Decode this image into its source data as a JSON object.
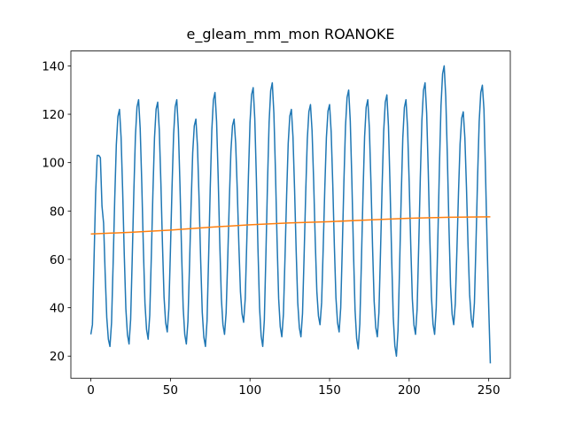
{
  "chart_data": {
    "type": "line",
    "title": "e_gleam_mm_mon ROANOKE",
    "series": [
      {
        "color": "#1f77b4",
        "x": [
          0,
          1,
          2,
          3,
          4,
          5,
          6,
          7,
          8,
          9,
          10,
          11,
          12,
          13,
          14,
          15,
          16,
          17,
          18,
          19,
          20,
          21,
          22,
          23,
          24,
          25,
          26,
          27,
          28,
          29,
          30,
          31,
          32,
          33,
          34,
          35,
          36,
          37,
          38,
          39,
          40,
          41,
          42,
          43,
          44,
          45,
          46,
          47,
          48,
          49,
          50,
          51,
          52,
          53,
          54,
          55,
          56,
          57,
          58,
          59,
          60,
          61,
          62,
          63,
          64,
          65,
          66,
          67,
          68,
          69,
          70,
          71,
          72,
          73,
          74,
          75,
          76,
          77,
          78,
          79,
          80,
          81,
          82,
          83,
          84,
          85,
          86,
          87,
          88,
          89,
          90,
          91,
          92,
          93,
          94,
          95,
          96,
          97,
          98,
          99,
          100,
          101,
          102,
          103,
          104,
          105,
          106,
          107,
          108,
          109,
          110,
          111,
          112,
          113,
          114,
          115,
          116,
          117,
          118,
          119,
          120,
          121,
          122,
          123,
          124,
          125,
          126,
          127,
          128,
          129,
          130,
          131,
          132,
          133,
          134,
          135,
          136,
          137,
          138,
          139,
          140,
          141,
          142,
          143,
          144,
          145,
          146,
          147,
          148,
          149,
          150,
          151,
          152,
          153,
          154,
          155,
          156,
          157,
          158,
          159,
          160,
          161,
          162,
          163,
          164,
          165,
          166,
          167,
          168,
          169,
          170,
          171,
          172,
          173,
          174,
          175,
          176,
          177,
          178,
          179,
          180,
          181,
          182,
          183,
          184,
          185,
          186,
          187,
          188,
          189,
          190,
          191,
          192,
          193,
          194,
          195,
          196,
          197,
          198,
          199,
          200,
          201,
          202,
          203,
          204,
          205,
          206,
          207,
          208,
          209,
          210,
          211,
          212,
          213,
          214,
          215,
          216,
          217,
          218,
          219,
          220,
          221,
          222,
          223,
          224,
          225,
          226,
          227,
          228,
          229,
          230,
          231,
          232,
          233,
          234,
          235,
          236,
          237,
          238,
          239,
          240,
          241,
          242,
          243,
          244,
          245,
          246,
          247,
          248,
          249,
          250,
          251
        ],
        "values": [
          29,
          33,
          60,
          87,
          103,
          103,
          102,
          82,
          75,
          54,
          36,
          27,
          24,
          33.8,
          58.3,
          84.8,
          107.3,
          119.1,
          122,
          110.4,
          88.1,
          61.9,
          39.6,
          28.9,
          25,
          35.1,
          60.4,
          87.6,
          110.9,
          123,
          126,
          114.1,
          91.4,
          64.6,
          41.9,
          31,
          27,
          36.8,
          61.3,
          87.8,
          110.3,
          122.1,
          125,
          113.6,
          91.8,
          66.1,
          44.3,
          33.8,
          30,
          39.6,
          63.6,
          89.5,
          111.6,
          123.1,
          126,
          113.9,
          90.7,
          63.4,
          40.2,
          29,
          25,
          34.3,
          57.6,
          82.7,
          104.1,
          115.2,
          118,
          106.7,
          85.1,
          59.7,
          38.1,
          27.8,
          24,
          34.5,
          60.8,
          89.1,
          113.3,
          125.9,
          129,
          117,
          94,
          67,
          44,
          33,
          29,
          37.9,
          60.2,
          84.2,
          104.7,
          115.3,
          118,
          107.9,
          88.6,
          65.9,
          46.6,
          37.4,
          34,
          43.7,
          68,
          94.1,
          116.5,
          128.1,
          131,
          118.2,
          93.6,
          64.7,
          40.1,
          28.3,
          24,
          34.9,
          62.2,
          91.6,
          116.7,
          129.7,
          133,
          120.4,
          96.3,
          67.9,
          43.8,
          32.2,
          28,
          37.4,
          60.9,
          86.3,
          107.9,
          119.2,
          122,
          110.7,
          89.1,
          63.7,
          42.1,
          31.8,
          28,
          37.6,
          61.6,
          87.5,
          109.6,
          121.1,
          124,
          113.1,
          92.2,
          67.6,
          46.7,
          36.6,
          33,
          42.1,
          64.9,
          89.4,
          110.4,
          121.3,
          124,
          112.7,
          91.1,
          65.7,
          44.1,
          33.8,
          30,
          40,
          65,
          92,
          115,
          127,
          130,
          117.2,
          92.6,
          63.7,
          39.1,
          27.3,
          23,
          33.3,
          59.1,
          86.9,
          110.6,
          122.9,
          126,
          114.2,
          91.7,
          65.2,
          42.7,
          31.9,
          28,
          38,
          63,
          90,
          113,
          125,
          128,
          115,
          90.2,
          61,
          36.2,
          24.3,
          20,
          30.6,
          57.1,
          85.7,
          110.1,
          122.8,
          126,
          114.4,
          92.1,
          65.9,
          43.6,
          32.9,
          29,
          39.4,
          65.4,
          93.5,
          117.4,
          129.9,
          133,
          120.5,
          96.6,
          68.5,
          44.6,
          33.2,
          29,
          40.1,
          67.9,
          97.8,
          123.4,
          136.7,
          140,
          127.2,
          102.6,
          73.7,
          49.1,
          37.3,
          33,
          41.8,
          63.8,
          87.6,
          107.8,
          118.4,
          121,
          110.3,
          89.9,
          65.8,
          45.4,
          35.6,
          32,
          42,
          67,
          94,
          117,
          129,
          132,
          122,
          95,
          66,
          40,
          17
        ]
      },
      {
        "color": "#ff7f0e",
        "x": [
          0,
          25,
          50,
          75,
          100,
          125,
          150,
          175,
          200,
          225,
          251
        ],
        "values": [
          70.5,
          71.2,
          72.1,
          73.3,
          74.3,
          75.1,
          75.6,
          76.3,
          77,
          77.4,
          77.6
        ]
      }
    ],
    "xlim": [
      -12.55,
      263.55
    ],
    "xticks": [
      0,
      50,
      100,
      150,
      200,
      250
    ],
    "ylim": [
      10.85,
      146.15
    ],
    "yticks": [
      20,
      40,
      60,
      80,
      100,
      120,
      140
    ]
  }
}
